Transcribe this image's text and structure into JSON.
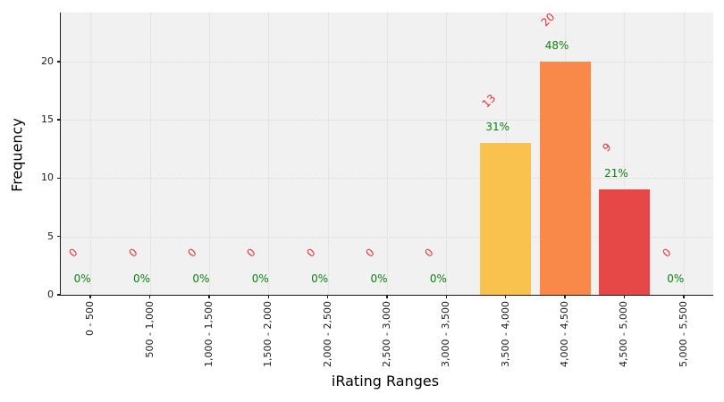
{
  "figure": {
    "background": "#ffffff",
    "plot_background": "#f1f1f2",
    "grid_color": "#d9d9d9",
    "axis_color": "#1a1a1a"
  },
  "chart_data": {
    "type": "bar",
    "title": "",
    "xlabel": "iRating Ranges",
    "ylabel": "Frequency",
    "categories": [
      "0 - 500",
      "500 - 1,000",
      "1,000 - 1,500",
      "1,500 - 2,000",
      "2,000 - 2,500",
      "2,500 - 3,000",
      "3,000 - 3,500",
      "3,500 - 4,000",
      "4,000 - 4,500",
      "4,500 - 5,000",
      "5,000 - 5,500"
    ],
    "values": [
      0,
      0,
      0,
      0,
      0,
      0,
      0,
      13,
      20,
      9,
      0
    ],
    "count_labels": [
      "0",
      "0",
      "0",
      "0",
      "0",
      "0",
      "0",
      "13",
      "20",
      "9",
      "0"
    ],
    "percent_labels": [
      "0%",
      "0%",
      "0%",
      "0%",
      "0%",
      "0%",
      "0%",
      "31%",
      "48%",
      "21%",
      "0%"
    ],
    "bar_colors": [
      null,
      null,
      null,
      null,
      null,
      null,
      null,
      "#f9c24e",
      "#f98948",
      "#e64747",
      null
    ],
    "count_label_color": "#e62e2e",
    "percent_label_color": "#0b810b",
    "count_label_rotation_deg": 45,
    "x_tick_rotation_deg": 90,
    "yticks": [
      0,
      5,
      10,
      15,
      20
    ],
    "ylim": [
      0,
      24.2
    ],
    "grid": true,
    "legend": false
  }
}
